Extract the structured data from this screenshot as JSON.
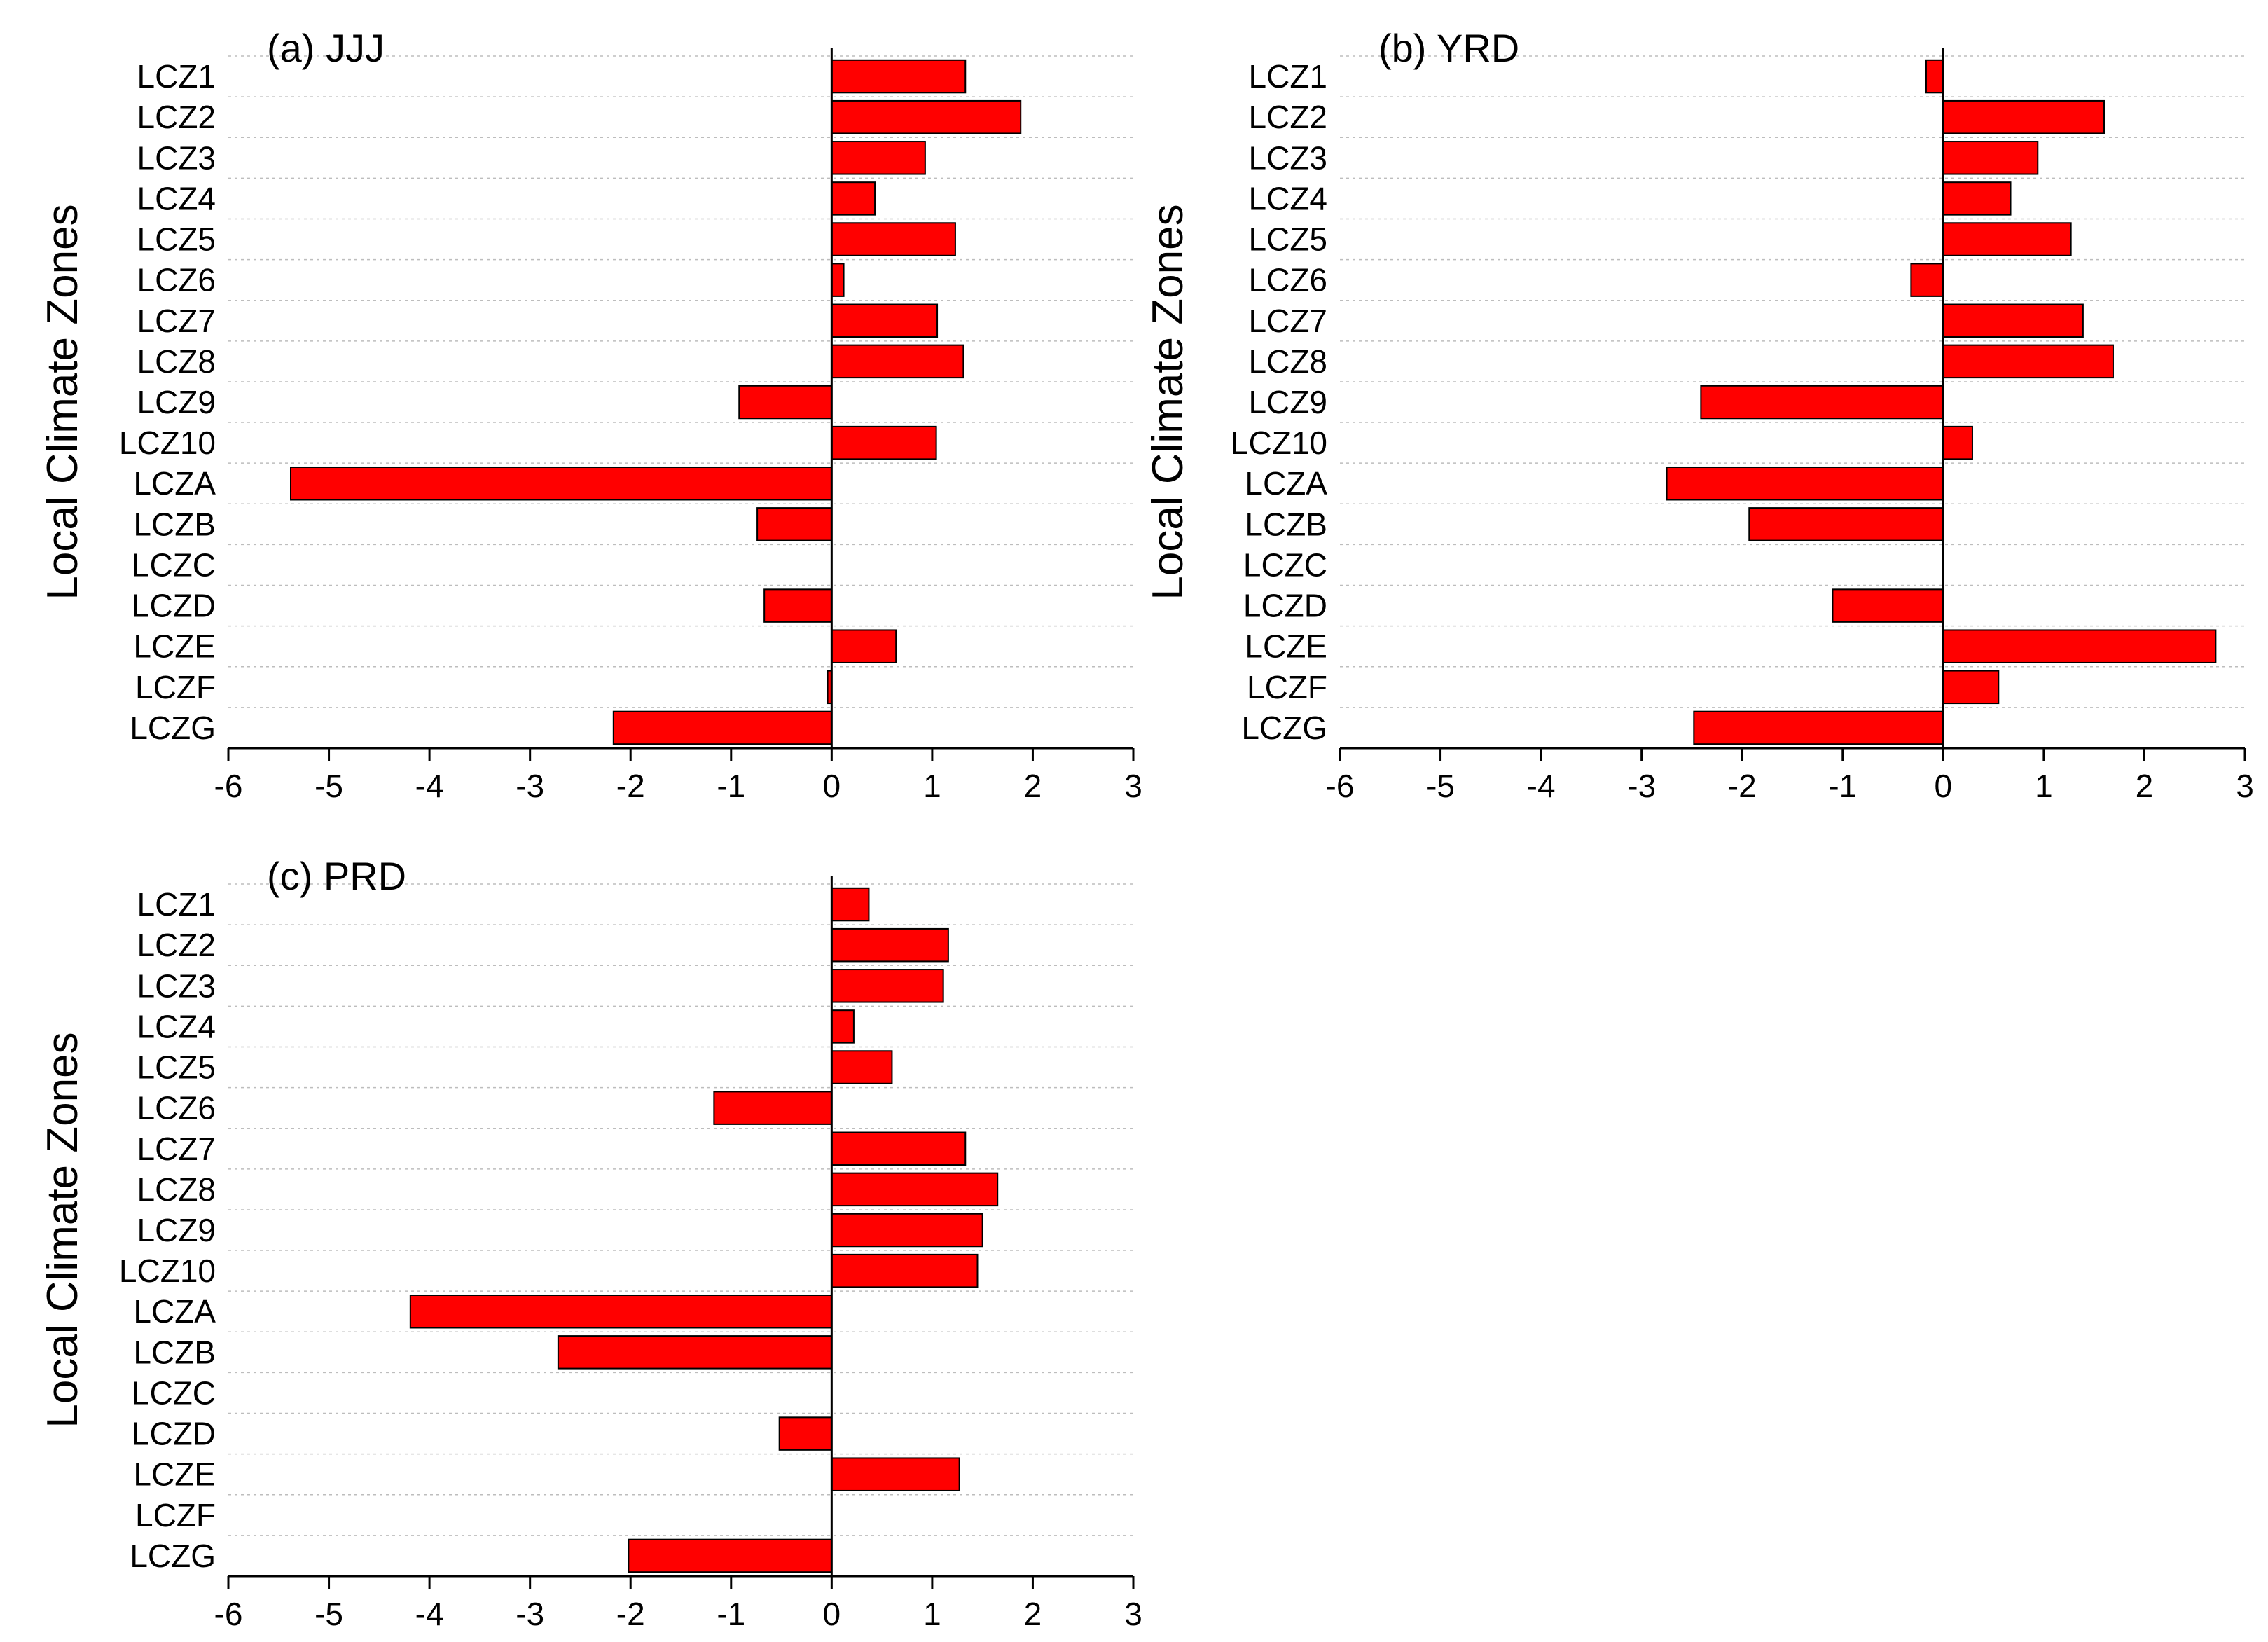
{
  "chart_data": [
    {
      "type": "bar",
      "orientation": "horizontal",
      "title": "(a) JJJ",
      "ylabel": "Local Climate Zones",
      "xlabel": "",
      "xlim": [
        -6,
        3
      ],
      "xticks": [
        -6,
        -5,
        -4,
        -3,
        -2,
        -1,
        0,
        1,
        2,
        3
      ],
      "categories": [
        "LCZ1",
        "LCZ2",
        "LCZ3",
        "LCZ4",
        "LCZ5",
        "LCZ6",
        "LCZ7",
        "LCZ8",
        "LCZ9",
        "LCZ10",
        "LCZA",
        "LCZB",
        "LCZC",
        "LCZD",
        "LCZE",
        "LCZF",
        "LCZG"
      ],
      "values": [
        1.33,
        1.88,
        0.93,
        0.43,
        1.23,
        0.12,
        1.05,
        1.31,
        -0.92,
        1.04,
        -5.38,
        -0.74,
        0.0,
        -0.67,
        0.64,
        -0.04,
        -2.17
      ],
      "bar_color": "#ff0000",
      "grid": true
    },
    {
      "type": "bar",
      "orientation": "horizontal",
      "title": "(b) YRD",
      "ylabel": "Local Climate Zones",
      "xlabel": "",
      "xlim": [
        -6,
        3
      ],
      "xticks": [
        -6,
        -5,
        -4,
        -3,
        -2,
        -1,
        0,
        1,
        2,
        3
      ],
      "categories": [
        "LCZ1",
        "LCZ2",
        "LCZ3",
        "LCZ4",
        "LCZ5",
        "LCZ6",
        "LCZ7",
        "LCZ8",
        "LCZ9",
        "LCZ10",
        "LCZA",
        "LCZB",
        "LCZC",
        "LCZD",
        "LCZE",
        "LCZF",
        "LCZG"
      ],
      "values": [
        -0.17,
        1.6,
        0.94,
        0.67,
        1.27,
        -0.32,
        1.39,
        1.69,
        -2.41,
        0.29,
        -2.75,
        -1.93,
        0.0,
        -1.1,
        2.71,
        0.55,
        -2.48
      ],
      "bar_color": "#ff0000",
      "grid": true
    },
    {
      "type": "bar",
      "orientation": "horizontal",
      "title": "(c) PRD",
      "ylabel": "Local Climate Zones",
      "xlabel": "",
      "xlim": [
        -6,
        3
      ],
      "xticks": [
        -6,
        -5,
        -4,
        -3,
        -2,
        -1,
        0,
        1,
        2,
        3
      ],
      "categories": [
        "LCZ1",
        "LCZ2",
        "LCZ3",
        "LCZ4",
        "LCZ5",
        "LCZ6",
        "LCZ7",
        "LCZ8",
        "LCZ9",
        "LCZ10",
        "LCZA",
        "LCZB",
        "LCZC",
        "LCZD",
        "LCZE",
        "LCZF",
        "LCZG"
      ],
      "values": [
        0.37,
        1.16,
        1.11,
        0.22,
        0.6,
        -1.17,
        1.33,
        1.65,
        1.5,
        1.45,
        -4.19,
        -2.72,
        0.0,
        -0.52,
        1.27,
        0.0,
        -2.02
      ],
      "bar_color": "#ff0000",
      "grid": true
    }
  ]
}
